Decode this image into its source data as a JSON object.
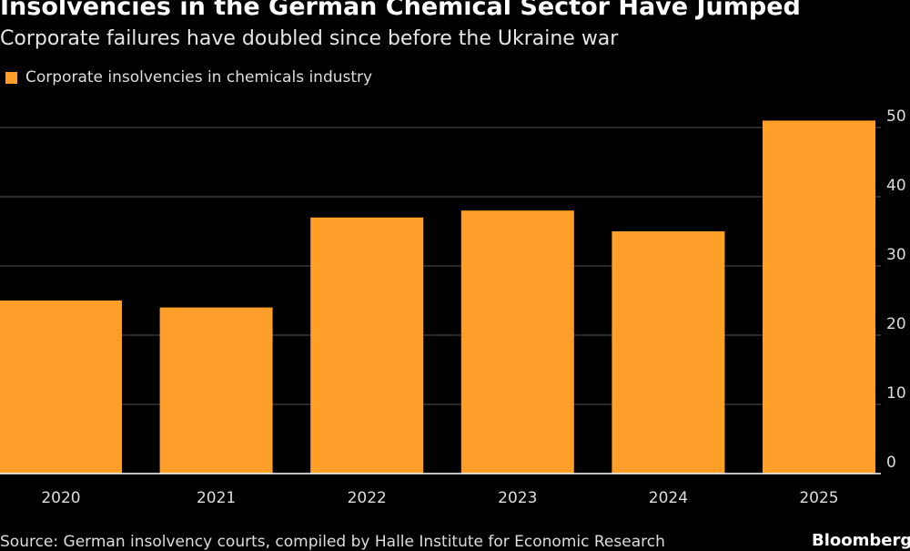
{
  "chart_data": {
    "type": "bar",
    "title": "Insolvencies in the German Chemical Sector Have Jumped",
    "subtitle": "Corporate failures have doubled since before the Ukraine war",
    "categories": [
      "2020",
      "2021",
      "2022",
      "2023",
      "2024",
      "2025"
    ],
    "series": [
      {
        "name": "Corporate insolvencies in chemicals industry",
        "values": [
          25,
          24,
          37,
          38,
          35,
          51
        ],
        "color": "#ff9f2a"
      }
    ],
    "ylim": [
      0,
      50
    ],
    "yticks": [
      0,
      10,
      20,
      30,
      40,
      50
    ],
    "y_axis_position": "right",
    "grid": true,
    "legend": "top-left",
    "xlabel": "",
    "ylabel": ""
  },
  "footer": {
    "source": "Source: German insolvency courts, compiled by Halle Institute for Economic Research",
    "brand": "Bloomberg"
  }
}
